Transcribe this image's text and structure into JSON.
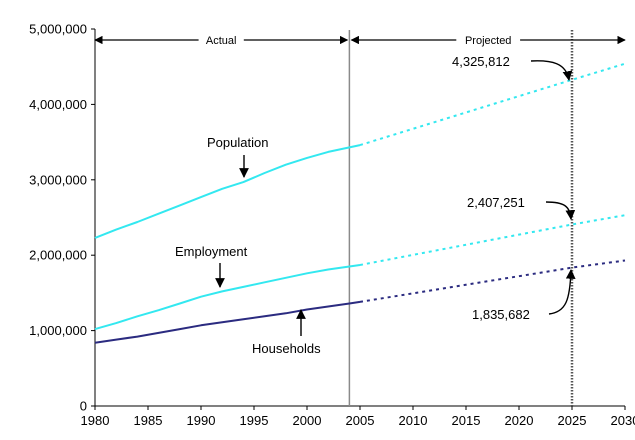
{
  "chart_data": {
    "type": "line",
    "title": "",
    "xlabel": "",
    "ylabel": "",
    "xlim": [
      1980,
      2030
    ],
    "ylim": [
      0,
      5000000
    ],
    "x_ticks": [
      "1980",
      "1985",
      "1990",
      "1995",
      "2000",
      "2005",
      "2010",
      "2015",
      "2020",
      "2025",
      "2030"
    ],
    "y_ticks": [
      "0",
      "1,000,000",
      "2,000,000",
      "3,000,000",
      "4,000,000",
      "5,000,000"
    ],
    "grid": false,
    "legend": "none",
    "periods": [
      {
        "label": "Actual",
        "from": 1980,
        "to": 2004
      },
      {
        "label": "Projected",
        "from": 2004,
        "to": 2030
      }
    ],
    "actual_end": 2004,
    "marker_year": 2025,
    "series": [
      {
        "name": "Population",
        "color": "#33e8f0",
        "actual": {
          "x": [
            1980,
            1982,
            1984,
            1986,
            1988,
            1990,
            1992,
            1994,
            1996,
            1998,
            2000,
            2002,
            2004,
            2005
          ],
          "y": [
            2230000,
            2340000,
            2440000,
            2550000,
            2660000,
            2770000,
            2880000,
            2970000,
            3090000,
            3200000,
            3290000,
            3370000,
            3430000,
            3460000
          ]
        },
        "projected": {
          "x": [
            2005,
            2025,
            2030
          ],
          "y": [
            3460000,
            4325812,
            4540000
          ]
        }
      },
      {
        "name": "Employment",
        "color": "#33e8f0",
        "actual": {
          "x": [
            1980,
            1982,
            1984,
            1986,
            1988,
            1990,
            1992,
            1994,
            1996,
            1998,
            2000,
            2002,
            2004,
            2005
          ],
          "y": [
            1020000,
            1100000,
            1190000,
            1270000,
            1360000,
            1450000,
            1520000,
            1580000,
            1640000,
            1700000,
            1760000,
            1810000,
            1850000,
            1870000
          ]
        },
        "projected": {
          "x": [
            2005,
            2025,
            2030
          ],
          "y": [
            1870000,
            2407251,
            2530000
          ]
        }
      },
      {
        "name": "Households",
        "color": "#2b2b80",
        "actual": {
          "x": [
            1980,
            1982,
            1984,
            1986,
            1988,
            1990,
            1992,
            1994,
            1996,
            1998,
            2000,
            2002,
            2004,
            2005
          ],
          "y": [
            840000,
            880000,
            920000,
            970000,
            1020000,
            1070000,
            1110000,
            1150000,
            1190000,
            1230000,
            1280000,
            1320000,
            1360000,
            1380000
          ]
        },
        "projected": {
          "x": [
            2005,
            2025,
            2030
          ],
          "y": [
            1380000,
            1835682,
            1930000
          ]
        }
      }
    ],
    "annotations": [
      {
        "text": "4,325,812",
        "x": 2025,
        "y": 4325812
      },
      {
        "text": "2,407,251",
        "x": 2025,
        "y": 2407251
      },
      {
        "text": "1,835,682",
        "x": 2025,
        "y": 1835682
      }
    ]
  }
}
